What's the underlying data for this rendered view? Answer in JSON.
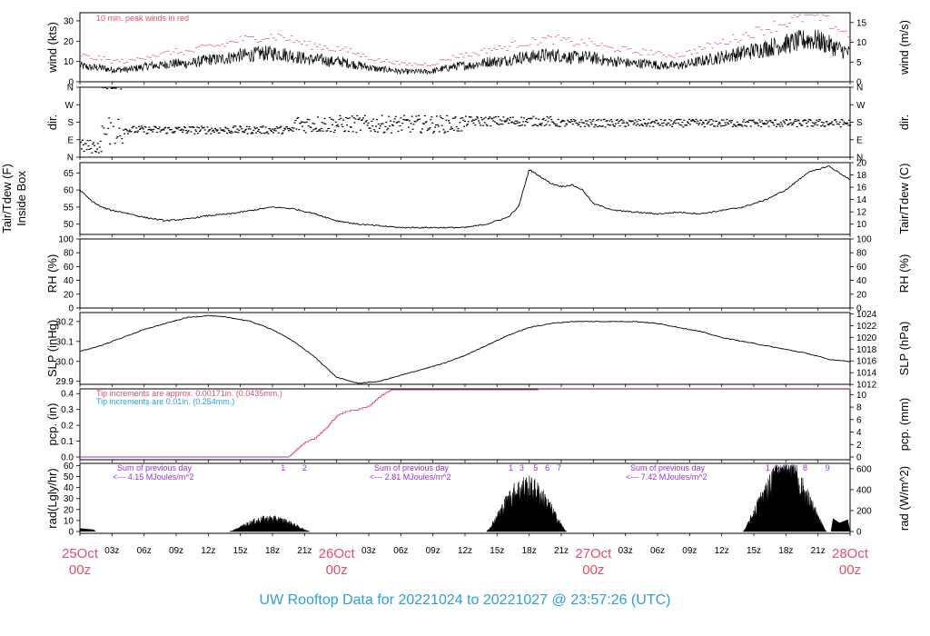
{
  "title": "UW Rooftop Data for 20221024  to  20221027 @ 23:57:26  (UTC)",
  "colors": {
    "peak": "#e0506a",
    "note_red": "#d9506a",
    "note_blue": "#2a9fd8",
    "purple": "#9a2fd8",
    "date": "#e0506a",
    "title": "#2a9fd8",
    "line": "#000000"
  },
  "x_axis": {
    "hour_ticks": [
      "03z",
      "06z",
      "09z",
      "12z",
      "15z",
      "18z",
      "21z",
      "00z",
      "03z",
      "06z",
      "09z",
      "12z",
      "15z",
      "18z",
      "21z",
      "00z",
      "03z",
      "06z",
      "09z",
      "12z",
      "15z",
      "18z",
      "21z"
    ],
    "date_labels": [
      {
        "date": "25Oct",
        "time": "00z"
      },
      {
        "date": "26Oct",
        "time": "00z"
      },
      {
        "date": "27Oct",
        "time": "00z"
      },
      {
        "date": "28Oct",
        "time": "00z"
      }
    ]
  },
  "chart_data": [
    {
      "type": "line",
      "panel": "wind",
      "ylabel_left": "wind (kts)",
      "ylabel_right": "wind (m/s)",
      "left_ticks": [
        "0",
        "10",
        "20",
        "30"
      ],
      "right_ticks": [
        "0",
        "5",
        "10",
        "15"
      ],
      "ylim": [
        0,
        34
      ],
      "annotation": "10 min. peak winds in red",
      "series": [
        {
          "values_kts_hourly": [
            8,
            7,
            7,
            6,
            6,
            6,
            7,
            8,
            8,
            9,
            9,
            9,
            10,
            11,
            11,
            12,
            13,
            13,
            14,
            14,
            14,
            13,
            12,
            11,
            11,
            10,
            10,
            9,
            8,
            7,
            6,
            6,
            5,
            5,
            5,
            5,
            6,
            7,
            8,
            8,
            9,
            10,
            10,
            11,
            12,
            12,
            13,
            13,
            13,
            12,
            12,
            12,
            11,
            10,
            10,
            9,
            9,
            9,
            8,
            8,
            8,
            9,
            10,
            11,
            12,
            13,
            14,
            15,
            16,
            17,
            18,
            19,
            20,
            21,
            20,
            18,
            16,
            14
          ]
        }
      ]
    },
    {
      "type": "scatter",
      "panel": "dir",
      "ylabel_left": "dir.",
      "ylabel_right": "dir.",
      "left_ticks": [
        "N",
        "E",
        "S",
        "W",
        "N"
      ],
      "right_ticks": [
        "N",
        "E",
        "S",
        "W",
        "N"
      ],
      "ylim": [
        0,
        360
      ]
    },
    {
      "type": "line",
      "panel": "temp",
      "ylabel_left": "Tair/Tdew (F)",
      "ylabel_left_2": "Inside Box",
      "ylabel_right": "Tair/Tdew (C)",
      "left_ticks": [
        "50",
        "55",
        "60",
        "65"
      ],
      "right_ticks": [
        "10",
        "12",
        "14",
        "16",
        "18",
        "20"
      ],
      "ylim": [
        47,
        68
      ],
      "x_hours": [
        0,
        1,
        2,
        3,
        4,
        6,
        8,
        10,
        12,
        14,
        16,
        18,
        20,
        22,
        24,
        26,
        28,
        30,
        32,
        34,
        36,
        38,
        40,
        41,
        42,
        43,
        44,
        45,
        46,
        47,
        48,
        50,
        52,
        54,
        56,
        58,
        60,
        62,
        64,
        66,
        68,
        69,
        70,
        71,
        72
      ],
      "values": [
        60,
        57,
        55,
        54,
        53.5,
        52,
        51,
        51.5,
        52.5,
        53,
        54,
        55,
        54.5,
        53,
        51,
        50,
        49.5,
        49,
        49,
        49,
        49,
        50,
        52,
        55,
        66,
        64,
        62,
        61,
        61.5,
        60,
        56,
        54,
        53.5,
        53,
        53.5,
        53,
        54,
        55,
        57,
        60,
        65,
        66,
        67,
        65,
        63
      ]
    },
    {
      "type": "line",
      "panel": "rh",
      "ylabel_left": "RH (%)",
      "ylabel_right": "RH (%)",
      "left_ticks": [
        "0",
        "20",
        "40",
        "60",
        "80",
        "100"
      ],
      "right_ticks": [
        "0",
        "20",
        "40",
        "60",
        "80",
        "100"
      ],
      "ylim": [
        0,
        100
      ]
    },
    {
      "type": "line",
      "panel": "slp",
      "ylabel_left": "SLP (inHg)",
      "ylabel_right": "SLP (hPa)",
      "left_ticks": [
        "29.9",
        "30.0",
        "30.1",
        "30.2"
      ],
      "right_ticks": [
        "1012",
        "1014",
        "1016",
        "1018",
        "1020",
        "1022",
        "1024"
      ],
      "ylim": [
        29.885,
        30.245
      ],
      "x_hours": [
        0,
        2,
        4,
        6,
        8,
        10,
        12,
        14,
        16,
        18,
        20,
        22,
        24,
        26,
        28,
        30,
        32,
        34,
        36,
        38,
        40,
        42,
        44,
        46,
        48,
        50,
        52,
        54,
        56,
        58,
        60,
        62,
        64,
        66,
        68,
        70,
        72
      ],
      "values": [
        30.05,
        30.08,
        30.12,
        30.16,
        30.19,
        30.22,
        30.23,
        30.22,
        30.2,
        30.16,
        30.1,
        30.02,
        29.92,
        29.89,
        29.9,
        29.93,
        29.96,
        29.99,
        30.03,
        30.08,
        30.13,
        30.17,
        30.19,
        30.2,
        30.2,
        30.2,
        30.2,
        30.19,
        30.17,
        30.15,
        30.12,
        30.1,
        30.08,
        30.06,
        30.04,
        30.01,
        30.0
      ]
    },
    {
      "type": "line",
      "panel": "pcp",
      "ylabel_left": "pcp. (in)",
      "ylabel_right": "pcp. (mm)",
      "left_ticks": [
        "0.0",
        "0.1",
        "0.2",
        "0.3",
        "0.4"
      ],
      "right_ticks": [
        "0",
        "2",
        "4",
        "6",
        "8",
        "10"
      ],
      "ylim": [
        0,
        0.43
      ],
      "annotation_1": "Tip increments are approx. 0.00171in. (0.0435mm.)",
      "annotation_2": "Tip increments are 0.01in. (0.254mm.)",
      "x_hours": [
        0,
        19.5,
        20,
        20.5,
        21,
        22,
        23,
        24,
        25,
        26,
        27,
        28,
        29,
        30,
        31,
        42,
        43,
        72
      ],
      "values": [
        0,
        0,
        0.03,
        0.06,
        0.09,
        0.12,
        0.18,
        0.26,
        0.29,
        0.3,
        0.32,
        0.38,
        0.42,
        0.42,
        0.42,
        0.42,
        0.43,
        0.43
      ]
    },
    {
      "type": "area",
      "panel": "rad",
      "ylabel_left": "rad(Lgly/hr)",
      "ylabel_right": "rad (W/m^2)",
      "left_ticks": [
        "0",
        "10",
        "20",
        "30",
        "40",
        "50",
        "60"
      ],
      "right_ticks": [
        "0",
        "200",
        "400",
        "600"
      ],
      "ylim": [
        0,
        62
      ],
      "sums": [
        {
          "label": "Sum of previous day",
          "value": "<--- 4.15 MJoules/m^2"
        },
        {
          "label": "Sum of previous day",
          "value": "<--- 2.81 MJoules/m^2"
        },
        {
          "label": "Sum of previous day",
          "value": "<--- 7.42 MJoules/m^2"
        }
      ],
      "hour_markers": [
        {
          "text": "1",
          "hour": 19
        },
        {
          "text": "2",
          "hour": 21
        },
        {
          "text": "1",
          "hour": 40.3
        },
        {
          "text": "3",
          "hour": 41.3
        },
        {
          "text": "5",
          "hour": 42.6
        },
        {
          "text": "6",
          "hour": 43.7
        },
        {
          "text": "7",
          "hour": 44.8
        },
        {
          "text": "1",
          "hour": 64.3
        },
        {
          "text": "6",
          "hour": 65.1
        },
        {
          "text": "8",
          "hour": 65.9
        },
        {
          "text": "8",
          "hour": 66.6
        },
        {
          "text": "8",
          "hour": 67.8
        },
        {
          "text": "9",
          "hour": 69.9
        }
      ],
      "days": [
        {
          "start": 14,
          "end": 21.5,
          "peak": 13
        },
        {
          "start": 38,
          "end": 45.5,
          "peak": 45
        },
        {
          "start": 62,
          "end": 69.8,
          "peak": 58
        }
      ],
      "start_blip": 3
    }
  ]
}
